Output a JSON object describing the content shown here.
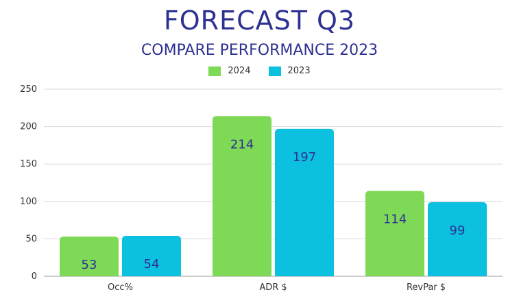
{
  "chart_data": {
    "type": "bar",
    "title": "FORECAST Q3",
    "subtitle": "COMPARE PERFORMANCE 2023",
    "categories": [
      "Occ%",
      "ADR $",
      "RevPar $"
    ],
    "series": [
      {
        "name": "2024",
        "values": [
          53,
          214,
          114
        ],
        "color": "#7ed957"
      },
      {
        "name": "2023",
        "values": [
          54,
          197,
          99
        ],
        "color": "#0cc0df"
      }
    ],
    "y_ticks": [
      "0",
      "50",
      "100",
      "150",
      "200",
      "250"
    ],
    "ylim": [
      0,
      250
    ],
    "grid": true,
    "legend_position": "top-center",
    "data_label_color": "#2e3192"
  }
}
